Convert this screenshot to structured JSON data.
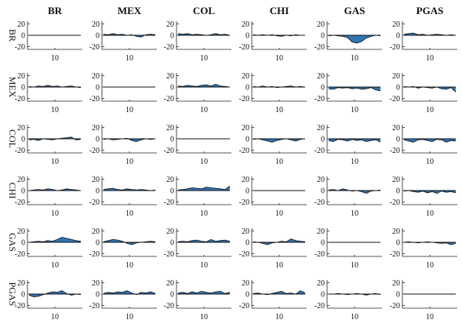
{
  "chart_data": {
    "type": "area",
    "layout": "6x6 grid of small multiples",
    "columns": [
      "BR",
      "MEX",
      "COL",
      "CHI",
      "GAS",
      "PGAS"
    ],
    "rows": [
      "BR",
      "MEX",
      "COL",
      "CHI",
      "GAS",
      "PGAS"
    ],
    "ylim": [
      -25,
      25
    ],
    "yticks": [
      20,
      0,
      -20
    ],
    "ytick_labels": [
      "20",
      "0",
      "-20"
    ],
    "xtick_label": "10",
    "fill_color": "#2e75b6",
    "line_color": "#111111",
    "diagonal": "flat zero line",
    "series": [
      [
        [
          0,
          0,
          0,
          0,
          0,
          0,
          0,
          0,
          0,
          0,
          0,
          0
        ],
        [
          2,
          1,
          3,
          1,
          2,
          0,
          1,
          -2,
          -3,
          1,
          2,
          1
        ],
        [
          3,
          2,
          3,
          1,
          2,
          1,
          0,
          1,
          3,
          1,
          2,
          0
        ],
        [
          1,
          0,
          1,
          0,
          1,
          -1,
          -2,
          0,
          -1,
          1,
          0,
          0
        ],
        [
          -1,
          0,
          -1,
          -2,
          -4,
          -12,
          -14,
          -11,
          -5,
          -2,
          0,
          -1
        ],
        [
          2,
          3,
          4,
          1,
          2,
          0,
          1,
          2,
          1,
          0,
          1,
          0
        ]
      ],
      [
        [
          1,
          0,
          2,
          1,
          3,
          1,
          2,
          0,
          1,
          2,
          0,
          -1
        ],
        [
          0,
          0,
          0,
          0,
          0,
          0,
          0,
          0,
          0,
          0,
          0,
          0
        ],
        [
          2,
          1,
          3,
          2,
          1,
          3,
          4,
          2,
          5,
          2,
          1,
          0
        ],
        [
          1,
          0,
          2,
          0,
          1,
          -1,
          0,
          1,
          2,
          0,
          1,
          0
        ],
        [
          -3,
          -4,
          -1,
          -2,
          -1,
          -3,
          -2,
          -4,
          -3,
          -1,
          -5,
          -7
        ],
        [
          1,
          0,
          1,
          -2,
          0,
          -1,
          -2,
          0,
          -3,
          -4,
          -1,
          -9
        ]
      ],
      [
        [
          -2,
          -1,
          -3,
          0,
          -1,
          -2,
          0,
          1,
          2,
          3,
          -2,
          -1
        ],
        [
          -1,
          0,
          -2,
          -1,
          0,
          1,
          -3,
          -5,
          -2,
          0,
          -1,
          0
        ],
        [
          0,
          0,
          0,
          0,
          0,
          0,
          0,
          0,
          0,
          0,
          0,
          0
        ],
        [
          -1,
          0,
          -2,
          -4,
          -6,
          -3,
          -1,
          0,
          -2,
          -4,
          -1,
          0
        ],
        [
          -3,
          -5,
          -1,
          -2,
          -4,
          -1,
          -3,
          -2,
          -5,
          -3,
          -2,
          -6
        ],
        [
          -2,
          -4,
          -6,
          -2,
          -1,
          -3,
          -5,
          -1,
          -2,
          -6,
          -3,
          -4
        ]
      ],
      [
        [
          0,
          1,
          2,
          1,
          3,
          2,
          0,
          1,
          3,
          2,
          1,
          0
        ],
        [
          2,
          3,
          4,
          2,
          1,
          3,
          2,
          1,
          2,
          1,
          0,
          1
        ],
        [
          1,
          2,
          3,
          5,
          4,
          3,
          6,
          5,
          4,
          3,
          2,
          8
        ],
        [
          0,
          0,
          0,
          0,
          0,
          0,
          0,
          0,
          0,
          0,
          0,
          0
        ],
        [
          1,
          2,
          0,
          3,
          1,
          -1,
          0,
          -2,
          -5,
          -1,
          0,
          1
        ],
        [
          -1,
          0,
          -2,
          -3,
          -1,
          -4,
          -2,
          -5,
          -1,
          -3,
          -2,
          -4
        ]
      ],
      [
        [
          0,
          1,
          2,
          1,
          3,
          2,
          5,
          9,
          7,
          5,
          3,
          2
        ],
        [
          1,
          3,
          5,
          4,
          2,
          -2,
          -4,
          -1,
          0,
          1,
          2,
          1
        ],
        [
          1,
          2,
          1,
          3,
          4,
          2,
          1,
          5,
          2,
          3,
          4,
          2
        ],
        [
          1,
          0,
          -2,
          -4,
          -1,
          0,
          2,
          1,
          6,
          3,
          2,
          1
        ],
        [
          0,
          0,
          0,
          0,
          0,
          0,
          0,
          0,
          0,
          0,
          0,
          0
        ],
        [
          0,
          1,
          0,
          -1,
          0,
          1,
          0,
          -1,
          -2,
          -1,
          -4,
          -2
        ]
      ],
      [
        [
          -2,
          -5,
          -4,
          -1,
          2,
          4,
          3,
          6,
          1,
          -2,
          0,
          -1
        ],
        [
          1,
          3,
          2,
          4,
          3,
          6,
          2,
          -1,
          3,
          2,
          4,
          1
        ],
        [
          2,
          3,
          1,
          4,
          2,
          5,
          3,
          2,
          4,
          5,
          1,
          3
        ],
        [
          1,
          2,
          0,
          -1,
          1,
          3,
          5,
          1,
          2,
          0,
          6,
          2
        ],
        [
          0,
          0,
          1,
          0,
          -1,
          0,
          1,
          0,
          -2,
          0,
          1,
          -1
        ],
        [
          0,
          0,
          0,
          0,
          0,
          0,
          0,
          0,
          0,
          0,
          0,
          0
        ]
      ]
    ]
  }
}
